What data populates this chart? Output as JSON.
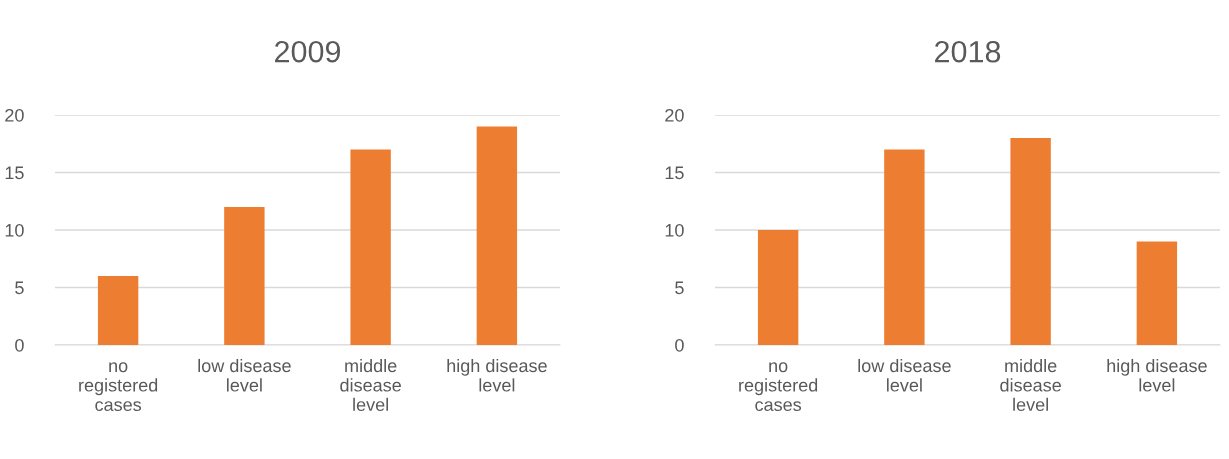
{
  "chart_data": [
    {
      "type": "bar",
      "title": "2009",
      "categories": [
        "no\nregistered\ncases",
        "low disease\nlevel",
        "middle\ndisease\nlevel",
        "high disease\nlevel"
      ],
      "values": [
        6,
        12,
        17,
        19
      ],
      "color": "#ed7d31",
      "ylim": [
        0,
        20
      ],
      "yticks": [
        0,
        5,
        10,
        15,
        20
      ],
      "grid": "y"
    },
    {
      "type": "bar",
      "title": "2018",
      "categories": [
        "no\nregistered\ncases",
        "low disease\nlevel",
        "middle\ndisease\nlevel",
        "high disease\nlevel"
      ],
      "values": [
        10,
        17,
        18,
        9
      ],
      "color": "#ed7d31",
      "ylim": [
        0,
        20
      ],
      "yticks": [
        0,
        5,
        10,
        15,
        20
      ],
      "grid": "y"
    }
  ]
}
